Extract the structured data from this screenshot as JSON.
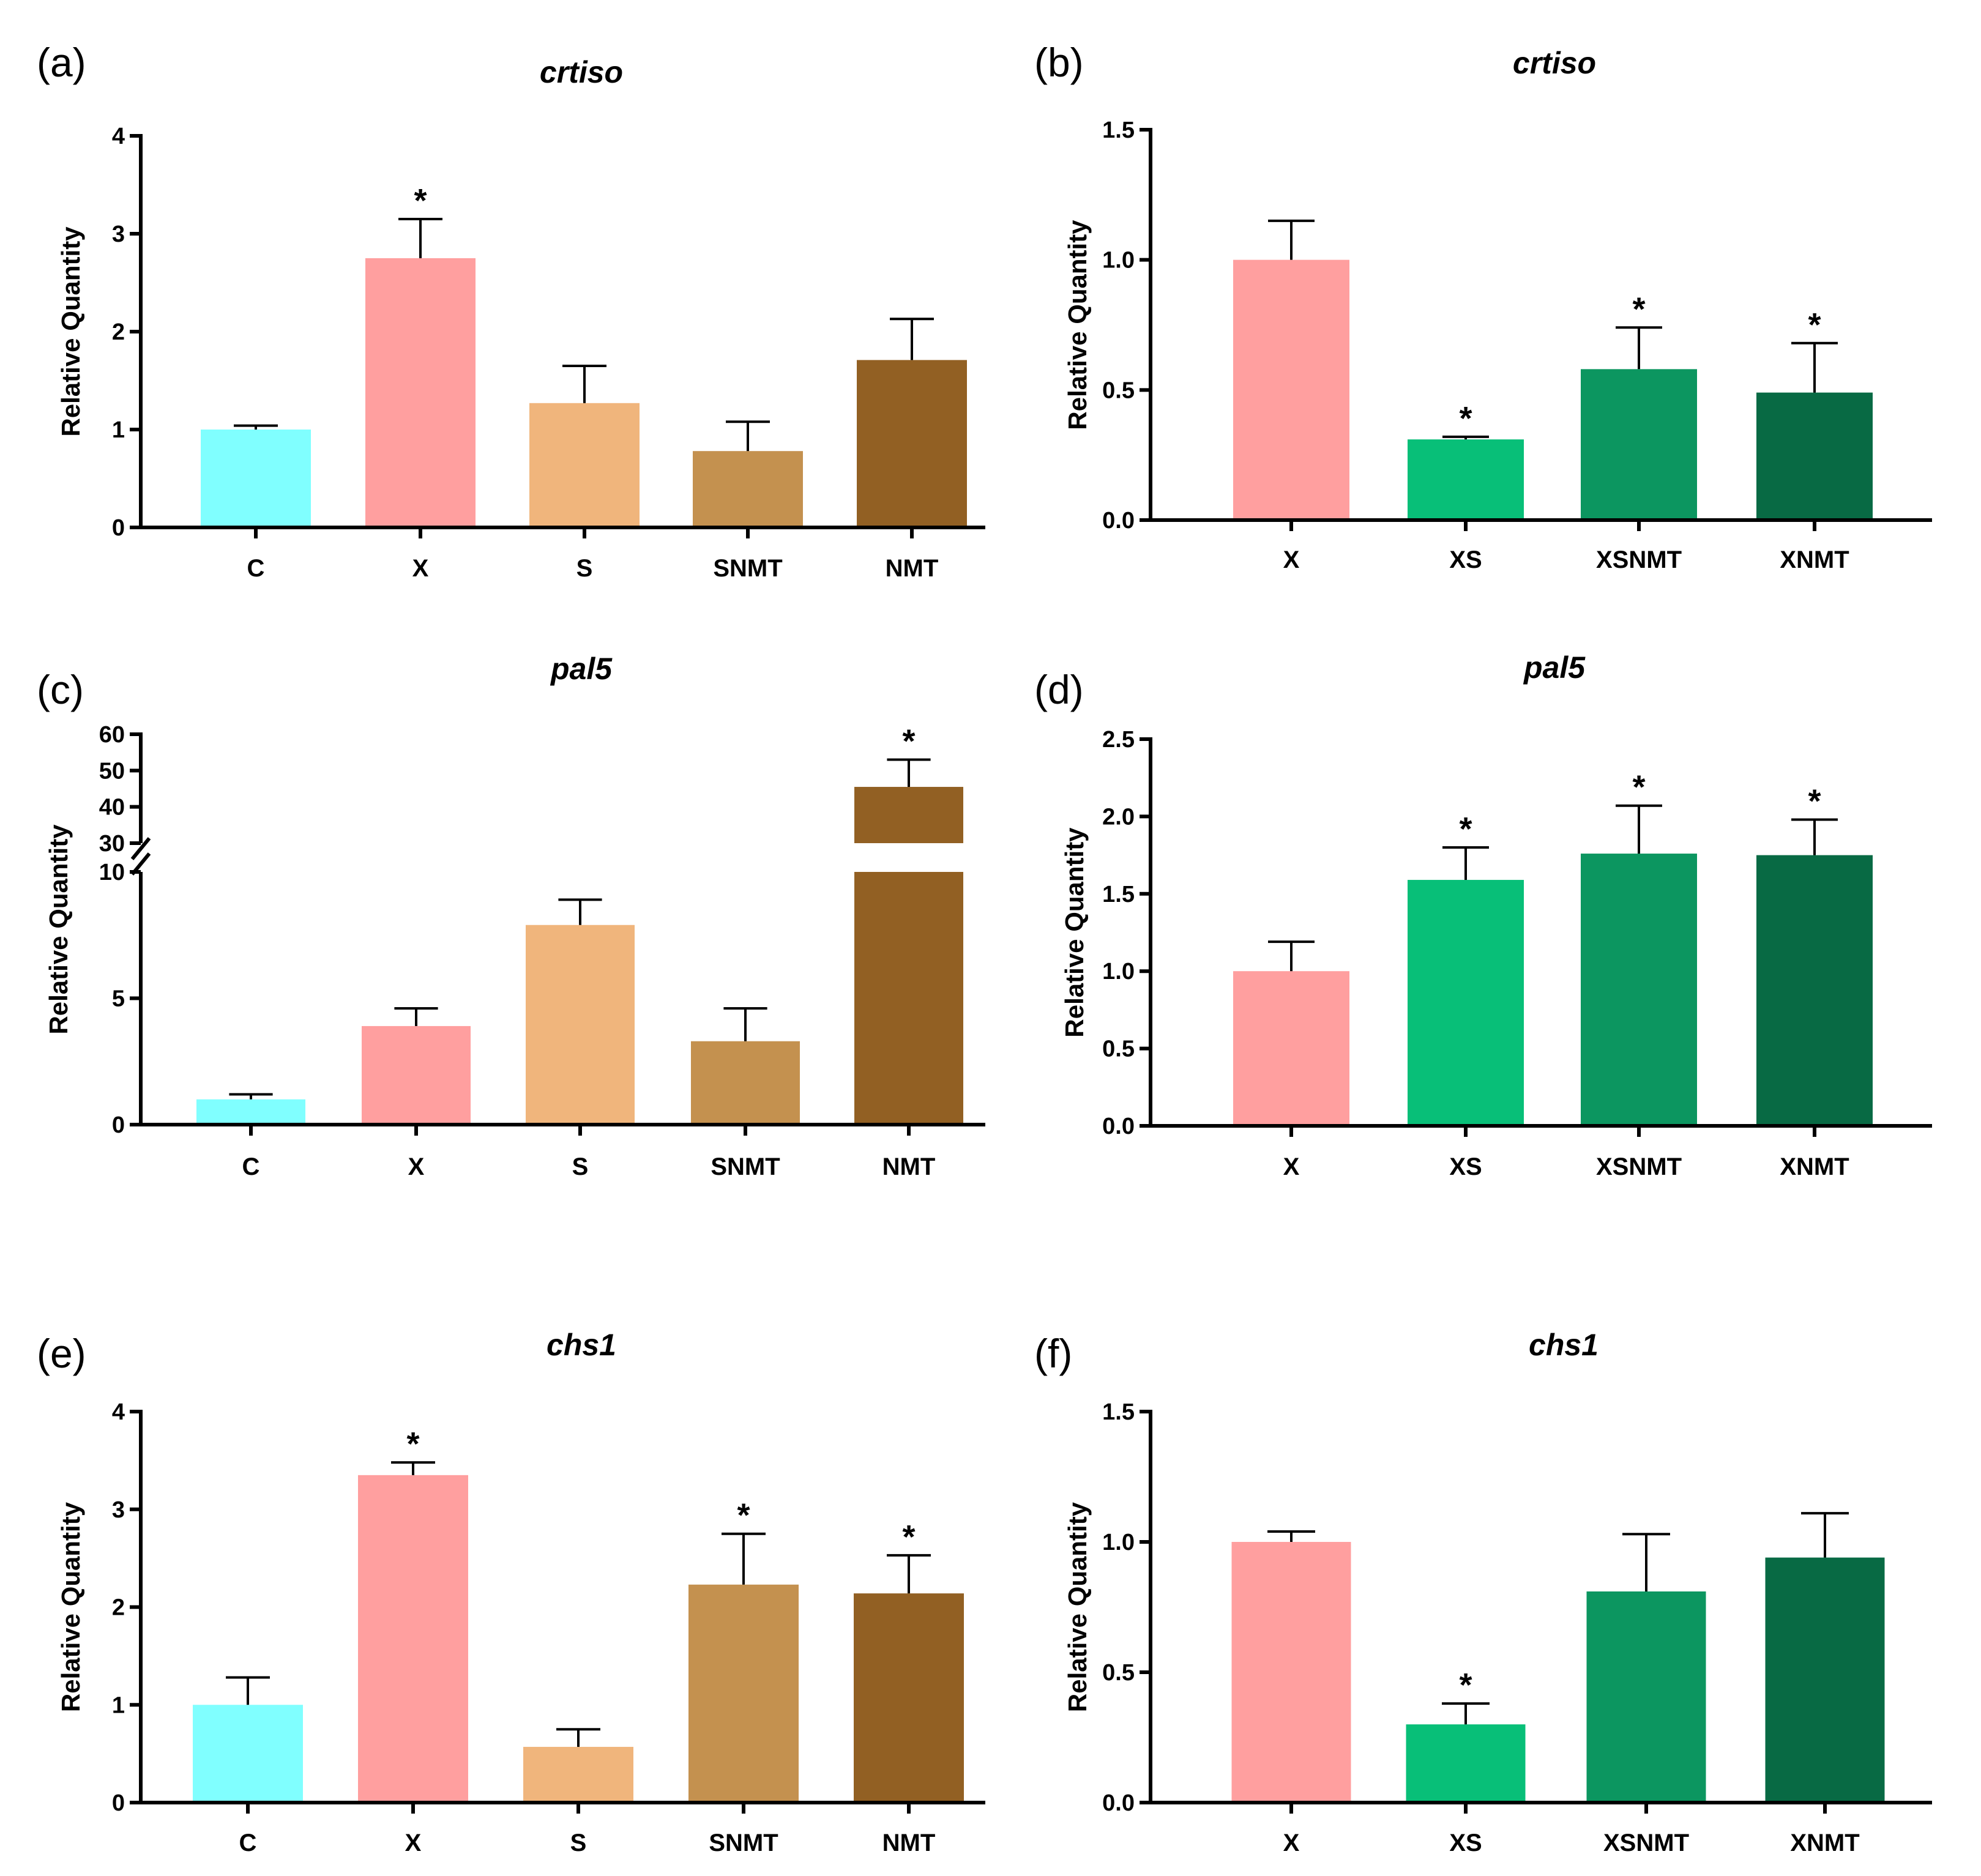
{
  "figure": {
    "panels": [
      "(a)",
      "(b)",
      "(c)",
      "(d)",
      "(e)",
      "(f)"
    ]
  },
  "chart_data": [
    {
      "panel": "(a)",
      "type": "bar",
      "title": "crtiso",
      "ylabel": "Relative Quantity",
      "xlabel": "",
      "categories": [
        "C",
        "X",
        "S",
        "SNMT",
        "NMT"
      ],
      "values": [
        1.0,
        2.75,
        1.27,
        0.78,
        1.71
      ],
      "errors": [
        0.04,
        0.4,
        0.38,
        0.3,
        0.42
      ],
      "significant": [
        false,
        true,
        false,
        false,
        false
      ],
      "colors": [
        "#80FFFF",
        "#FF9F9F",
        "#F0B57C",
        "#C4914F",
        "#926023"
      ],
      "ylim": [
        0,
        4
      ],
      "yticks": [
        0,
        1,
        2,
        3,
        4
      ],
      "ytick_labels": [
        "0",
        "1",
        "2",
        "3",
        "4"
      ]
    },
    {
      "panel": "(b)",
      "type": "bar",
      "title": "crtiso",
      "ylabel": "Relative Quantity",
      "xlabel": "",
      "categories": [
        "X",
        "XS",
        "XSNMT",
        "XNMT"
      ],
      "values": [
        1.0,
        0.31,
        0.58,
        0.49
      ],
      "errors": [
        0.15,
        0.01,
        0.16,
        0.19
      ],
      "significant": [
        false,
        true,
        true,
        true
      ],
      "colors": [
        "#FF9F9F",
        "#08BF78",
        "#0C9660",
        "#086A44"
      ],
      "ylim": [
        0,
        1.5
      ],
      "yticks": [
        0,
        0.5,
        1.0,
        1.5
      ],
      "ytick_labels": [
        "0.0",
        "0.5",
        "1.0",
        "1.5"
      ]
    },
    {
      "panel": "(c)",
      "type": "bar",
      "title": "pal5",
      "ylabel": "Relative Quantity",
      "xlabel": "",
      "categories": [
        "C",
        "X",
        "S",
        "SNMT",
        "NMT"
      ],
      "values": [
        1.0,
        3.9,
        7.9,
        3.3,
        45.5
      ],
      "errors": [
        0.2,
        0.7,
        1.0,
        1.3,
        7.5
      ],
      "significant": [
        false,
        false,
        false,
        false,
        true
      ],
      "colors": [
        "#80FFFF",
        "#FF9F9F",
        "#F0B57C",
        "#C4914F",
        "#926023"
      ],
      "axis_break": [
        10,
        30
      ],
      "ylim_lower": [
        0,
        10
      ],
      "ylim_upper": [
        30,
        60
      ],
      "yticks": [
        0,
        5,
        10,
        30,
        40,
        50,
        60
      ],
      "ytick_labels": [
        "0",
        "5",
        "10",
        "30",
        "40",
        "50",
        "60"
      ]
    },
    {
      "panel": "(d)",
      "type": "bar",
      "title": "pal5",
      "ylabel": "Relative Quantity",
      "xlabel": "",
      "categories": [
        "X",
        "XS",
        "XSNMT",
        "XNMT"
      ],
      "values": [
        1.0,
        1.59,
        1.76,
        1.75
      ],
      "errors": [
        0.19,
        0.21,
        0.31,
        0.23
      ],
      "significant": [
        false,
        true,
        true,
        true
      ],
      "colors": [
        "#FF9F9F",
        "#08BF78",
        "#0C9660",
        "#086A44"
      ],
      "ylim": [
        0,
        2.5
      ],
      "yticks": [
        0,
        0.5,
        1.0,
        1.5,
        2.0,
        2.5
      ],
      "ytick_labels": [
        "0.0",
        "0.5",
        "1.0",
        "1.5",
        "2.0",
        "2.5"
      ]
    },
    {
      "panel": "(e)",
      "type": "bar",
      "title": "chs1",
      "ylabel": "Relative Quantity",
      "xlabel": "",
      "categories": [
        "C",
        "X",
        "S",
        "SNMT",
        "NMT"
      ],
      "values": [
        1.0,
        3.35,
        0.57,
        2.23,
        2.14
      ],
      "errors": [
        0.28,
        0.13,
        0.18,
        0.52,
        0.39
      ],
      "significant": [
        false,
        true,
        false,
        true,
        true
      ],
      "colors": [
        "#80FFFF",
        "#FF9F9F",
        "#F0B57C",
        "#C4914F",
        "#926023"
      ],
      "ylim": [
        0,
        4
      ],
      "yticks": [
        0,
        1,
        2,
        3,
        4
      ],
      "ytick_labels": [
        "0",
        "1",
        "2",
        "3",
        "4"
      ]
    },
    {
      "panel": "(f)",
      "type": "bar",
      "title": "chs1",
      "ylabel": "Relative Quantity",
      "xlabel": "",
      "categories": [
        "X",
        "XS",
        "XSNMT",
        "XNMT"
      ],
      "values": [
        1.0,
        0.3,
        0.81,
        0.94
      ],
      "errors": [
        0.04,
        0.08,
        0.22,
        0.17
      ],
      "significant": [
        false,
        true,
        false,
        false
      ],
      "colors": [
        "#FF9F9F",
        "#08BF78",
        "#0C9660",
        "#086A44"
      ],
      "ylim": [
        0,
        1.5
      ],
      "yticks": [
        0,
        0.5,
        1.0,
        1.5
      ],
      "ytick_labels": [
        "0.0",
        "0.5",
        "1.0",
        "1.5"
      ]
    }
  ],
  "significance_marker": "*"
}
